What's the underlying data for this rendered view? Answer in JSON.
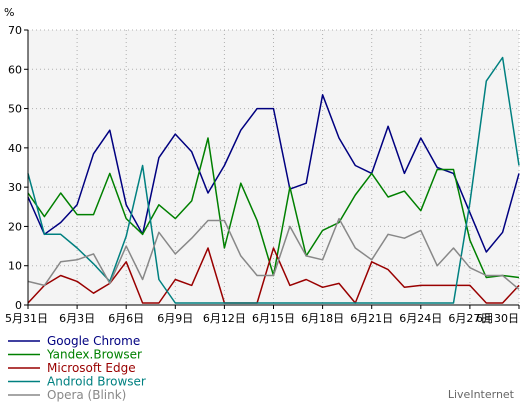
{
  "chart_data": {
    "type": "line",
    "ylabel": "%",
    "ylim": [
      0,
      70
    ],
    "yticks": [
      0,
      10,
      20,
      30,
      40,
      50,
      60,
      70
    ],
    "x": [
      "5月31日",
      "6月1日",
      "6月2日",
      "6月3日",
      "6月4日",
      "6月5日",
      "6月6日",
      "6月7日",
      "6月8日",
      "6月9日",
      "6月10日",
      "6月11日",
      "6月12日",
      "6月13日",
      "6月14日",
      "6月15日",
      "6月16日",
      "6月17日",
      "6月18日",
      "6月19日",
      "6月20日",
      "6月21日",
      "6月22日",
      "6月23日",
      "6月24日",
      "6月25日",
      "6月26日",
      "6月27日",
      "6月28日",
      "6月29日",
      "6月30日"
    ],
    "xtick_labels": [
      "5月31日",
      "6月3日",
      "6月6日",
      "6月9日",
      "6月12日",
      "6月15日",
      "6月18日",
      "6月21日",
      "6月24日",
      "6月27日",
      "6月30日"
    ],
    "xtick_indices": [
      0,
      3,
      6,
      9,
      12,
      15,
      18,
      21,
      24,
      27,
      30
    ],
    "grid": true,
    "legend_position": "bottom-left",
    "credit": "LiveInternet",
    "series": [
      {
        "name": "Google Chrome",
        "color": "#000080",
        "values": [
          27.5,
          18,
          21,
          25.5,
          38.5,
          44.5,
          25.5,
          18,
          37.5,
          43.5,
          39,
          28.5,
          35.5,
          44.5,
          50,
          50,
          29.5,
          31,
          53.5,
          42.5,
          35.5,
          33.5,
          45.5,
          33.5,
          42.5,
          35,
          33.5,
          23.5,
          13.5,
          18.5,
          33.5
        ]
      },
      {
        "name": "Yandex.Browser",
        "color": "#008000",
        "values": [
          28.5,
          22.5,
          28.5,
          23,
          23,
          33.5,
          22,
          18,
          25.5,
          22,
          26.5,
          42.5,
          14.5,
          31,
          21.5,
          7.5,
          30,
          12.5,
          19,
          21,
          28,
          33.5,
          27.5,
          29,
          24,
          34.5,
          34.5,
          16.5,
          7,
          7.5,
          7
        ]
      },
      {
        "name": "Microsoft Edge",
        "color": "#990000",
        "values": [
          0.5,
          5,
          7.5,
          6,
          3,
          5.5,
          11,
          0.5,
          0.5,
          6.5,
          5,
          14.5,
          0.5,
          0.5,
          0.5,
          14.5,
          5,
          6.5,
          4.5,
          5.5,
          0.5,
          11,
          9,
          4.5,
          5,
          5,
          5,
          5,
          0.5,
          0.5,
          5
        ]
      },
      {
        "name": "Android Browser",
        "color": "#008080",
        "values": [
          33.5,
          18,
          18,
          14.5,
          10.5,
          6,
          17.5,
          35.5,
          6.5,
          0.5,
          0.5,
          0.5,
          0.5,
          0.5,
          0.5,
          0.5,
          0.5,
          0.5,
          0.5,
          0.5,
          0.5,
          0.5,
          0.5,
          0.5,
          0.5,
          0.5,
          0.5,
          26,
          57,
          63,
          35.5
        ]
      },
      {
        "name": "Opera (Blink)",
        "color": "#888888",
        "values": [
          6,
          5,
          11,
          11.5,
          13,
          5.5,
          15,
          6.5,
          18.5,
          13,
          17,
          21.5,
          21.5,
          12.5,
          7.5,
          7.5,
          20,
          12.5,
          11.5,
          22,
          14.5,
          11.5,
          18,
          17,
          19,
          10,
          14.5,
          9.5,
          7.5,
          7.5,
          4
        ]
      }
    ]
  }
}
